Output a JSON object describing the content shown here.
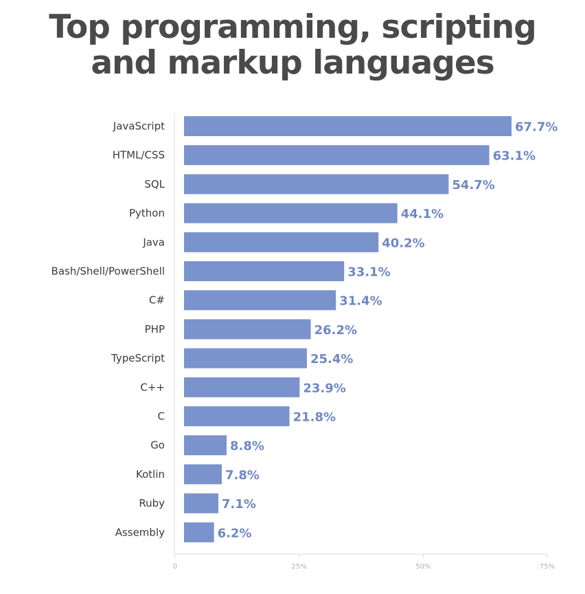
{
  "header": {
    "title_line1": "Top programming, scripting",
    "title_line2": "and markup languages"
  },
  "colors": {
    "bar": "#7a93cc",
    "value_label": "#6f88c4",
    "title": "#4a4a4a",
    "axis": "#dcdcdc"
  },
  "chart_data": {
    "type": "bar",
    "orientation": "horizontal",
    "title": "Top programming, scripting and markup languages",
    "xlabel": "",
    "ylabel": "",
    "xlim": [
      0,
      75
    ],
    "xticks": [
      0,
      25,
      50,
      75
    ],
    "xtick_labels": [
      "0",
      "25%",
      "50%",
      "75%"
    ],
    "grid": false,
    "legend": "none",
    "categories": [
      "JavaScript",
      "HTML/CSS",
      "SQL",
      "Python",
      "Java",
      "Bash/Shell/PowerShell",
      "C#",
      "PHP",
      "TypeScript",
      "C++",
      "C",
      "Go",
      "Kotlin",
      "Ruby",
      "Assembly"
    ],
    "values": [
      67.7,
      63.1,
      54.7,
      44.1,
      40.2,
      33.1,
      31.4,
      26.2,
      25.4,
      23.9,
      21.8,
      8.8,
      7.8,
      7.1,
      6.2
    ],
    "value_labels": [
      "67.7%",
      "63.1%",
      "54.7%",
      "44.1%",
      "40.2%",
      "33.1%",
      "31.4%",
      "26.2%",
      "25.4%",
      "23.9%",
      "21.8%",
      "8.8%",
      "7.8%",
      "7.1%",
      "6.2%"
    ]
  }
}
